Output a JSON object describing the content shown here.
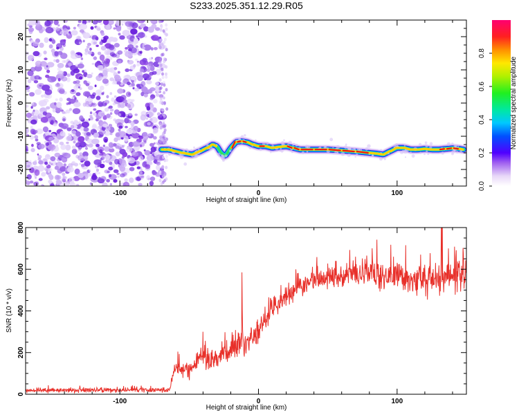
{
  "figure": {
    "title": "S233.2025.351.12.29.R05"
  },
  "chart_data": [
    {
      "type": "heatmap",
      "name": "spectrogram",
      "xlabel": "Height of straight line (km)",
      "ylabel": "Frequency (Hz)",
      "xlim": [
        -168,
        150
      ],
      "ylim": [
        -25,
        25
      ],
      "xticks": [
        -100,
        0,
        100
      ],
      "yticks": [
        -20,
        -10,
        0,
        10,
        20
      ],
      "noise_region": {
        "x_range": [
          -168,
          -68
        ],
        "y_range": [
          -25,
          25
        ],
        "typical_amplitude": 0.05
      },
      "signal_track": {
        "note": "narrow carrier line, center frequency (Hz) vs height (km), normalized peak amplitude",
        "x": [
          -70,
          -65,
          -55,
          -48,
          -42,
          -37,
          -33,
          -30,
          -27,
          -24,
          -20,
          -16,
          -12,
          -8,
          -4,
          0,
          5,
          10,
          15,
          20,
          25,
          30,
          40,
          50,
          60,
          70,
          80,
          85,
          90,
          95,
          100,
          105,
          110,
          115,
          120,
          125,
          130,
          135,
          140,
          145,
          148
        ],
        "freq": [
          -14.0,
          -14.0,
          -15.0,
          -15.5,
          -14.5,
          -13.5,
          -12.5,
          -13.0,
          -15.0,
          -16.0,
          -13.5,
          -11.7,
          -11.5,
          -11.8,
          -12.5,
          -13.0,
          -13.0,
          -13.5,
          -13.2,
          -13.0,
          -13.5,
          -14.0,
          -14.0,
          -14.0,
          -14.3,
          -14.6,
          -15.0,
          -15.2,
          -15.5,
          -14.5,
          -13.5,
          -13.5,
          -14.0,
          -14.0,
          -13.8,
          -14.0,
          -14.0,
          -13.8,
          -13.6,
          -13.8,
          -14.0
        ],
        "amplitude": [
          0.7,
          0.8,
          0.75,
          0.7,
          0.8,
          0.75,
          0.85,
          0.6,
          0.55,
          0.6,
          0.8,
          0.95,
          0.95,
          0.85,
          0.7,
          0.8,
          0.85,
          0.75,
          0.8,
          0.8,
          0.85,
          0.9,
          0.95,
          0.95,
          0.8,
          0.85,
          0.8,
          0.7,
          0.75,
          0.7,
          0.75,
          0.7,
          0.75,
          0.7,
          0.8,
          0.75,
          0.85,
          0.8,
          0.85,
          0.8,
          0.8
        ]
      },
      "colorbar": {
        "label": "Normalized spectral amplitude",
        "range": [
          0,
          1
        ],
        "ticks": [
          0.0,
          0.2,
          0.4,
          0.6,
          0.8
        ],
        "tick_labels": [
          "0.0",
          "0.2",
          "0.4",
          "0.6",
          "0.8"
        ]
      }
    },
    {
      "type": "line",
      "name": "snr",
      "xlabel": "Height of straight line (km)",
      "ylabel": "SNR (10 * v/v)",
      "xlim": [
        -168,
        150
      ],
      "ylim": [
        0,
        800
      ],
      "xticks": [
        -100,
        0,
        100
      ],
      "yticks": [
        0,
        200,
        400,
        600,
        800
      ],
      "series": [
        {
          "name": "SNR",
          "color": "#e8302a",
          "note": "mean trend; drawn with high-frequency fluctuation",
          "x": [
            -168,
            -120,
            -80,
            -64,
            -60,
            -55,
            -50,
            -45,
            -40,
            -35,
            -30,
            -25,
            -20,
            -15,
            -12,
            -10,
            -5,
            0,
            5,
            10,
            15,
            20,
            25,
            30,
            40,
            50,
            60,
            70,
            80,
            90,
            100,
            110,
            120,
            130,
            140,
            150
          ],
          "y": [
            18,
            20,
            20,
            20,
            140,
            110,
            120,
            150,
            190,
            160,
            175,
            200,
            220,
            240,
            270,
            230,
            270,
            300,
            360,
            410,
            440,
            470,
            500,
            520,
            550,
            560,
            570,
            575,
            570,
            565,
            570,
            560,
            560,
            565,
            570,
            570
          ],
          "noise": [
            8,
            8,
            8,
            8,
            25,
            25,
            30,
            30,
            35,
            35,
            40,
            40,
            40,
            45,
            45,
            45,
            45,
            45,
            45,
            45,
            40,
            40,
            40,
            40,
            40,
            40,
            40,
            45,
            45,
            50,
            50,
            55,
            55,
            60,
            60,
            60
          ],
          "spikes": [
            {
              "x": -40,
              "y": 300
            },
            {
              "x": -12,
              "y": 585
            },
            {
              "x": 56,
              "y": 640
            },
            {
              "x": 70,
              "y": 660
            },
            {
              "x": 117,
              "y": 670
            },
            {
              "x": 132,
              "y": 810
            },
            {
              "x": 137,
              "y": 700
            },
            {
              "x": 150,
              "y": 660
            }
          ]
        }
      ]
    }
  ]
}
